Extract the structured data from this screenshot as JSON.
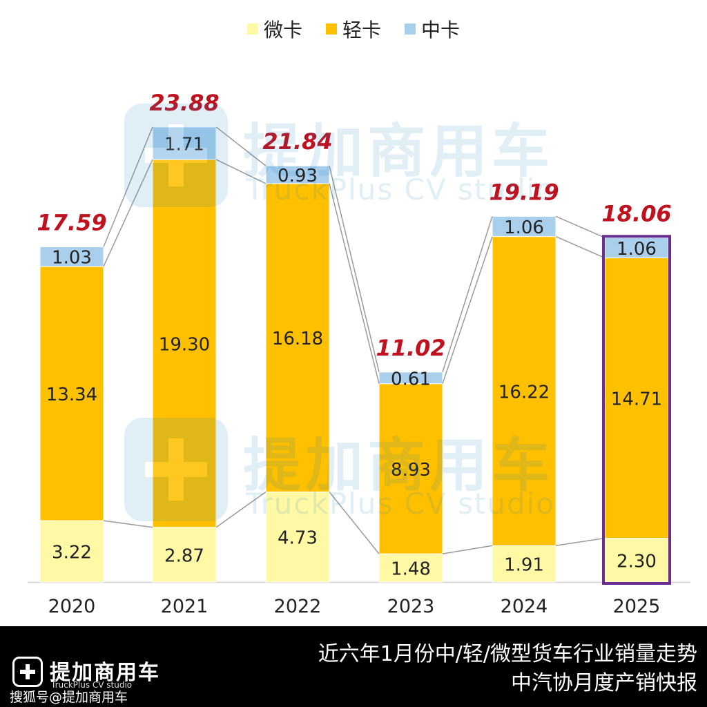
{
  "legend": [
    {
      "label": "微卡",
      "color": "#fff9a6"
    },
    {
      "label": "轻卡",
      "color": "#ffc000"
    },
    {
      "label": "中卡",
      "color": "#a9cfed"
    }
  ],
  "watermark": {
    "name": "提加商用车",
    "sub": "TruckPlus CV studio"
  },
  "footer": {
    "brand": "提加商用车",
    "brand_sub": "TruckPlus CV studio",
    "credit": "搜狐号@提加商用车",
    "title_line1": "近六年1月份中/轻/微型货车行业销量走势",
    "title_line2": "中汽协月度产销快报"
  },
  "colors": {
    "total_label": "#c0111f",
    "connector": "#9a9a9a",
    "highlight_border": "#6b2d90",
    "axis": "#cfcfcf"
  },
  "chart_data": {
    "type": "bar",
    "stacked": true,
    "categories": [
      "2020",
      "2021",
      "2022",
      "2023",
      "2024",
      "2025"
    ],
    "series": [
      {
        "name": "微卡",
        "values": [
          3.22,
          2.87,
          4.73,
          1.48,
          1.91,
          2.3
        ],
        "labels": [
          "3.22",
          "2.87",
          "4.73",
          "1.48",
          "1.91",
          "2.30"
        ]
      },
      {
        "name": "轻卡",
        "values": [
          13.34,
          19.3,
          16.18,
          8.93,
          16.22,
          14.71
        ],
        "labels": [
          "13.34",
          "19.30",
          "16.18",
          "8.93",
          "16.22",
          "14.71"
        ]
      },
      {
        "name": "中卡",
        "values": [
          1.03,
          1.71,
          0.93,
          0.61,
          1.06,
          1.06
        ],
        "labels": [
          "1.03",
          "1.71",
          "0.93",
          "0.61",
          "1.06",
          "1.06"
        ]
      }
    ],
    "totals": [
      "17.59",
      "23.88",
      "21.84",
      "11.02",
      "19.19",
      "18.06"
    ],
    "highlight_category": "2025",
    "ylim": [
      0,
      25
    ],
    "grid": false,
    "legend_position": "top-center"
  }
}
